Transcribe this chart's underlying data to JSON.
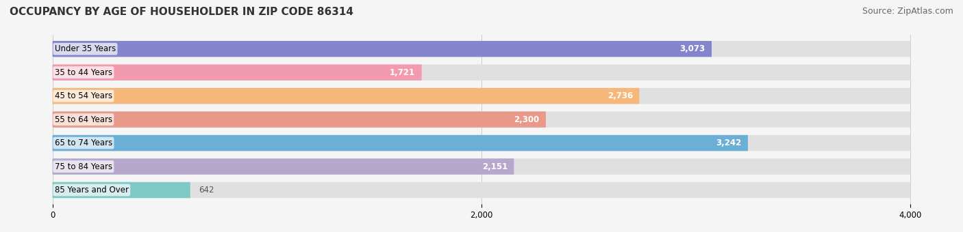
{
  "title": "OCCUPANCY BY AGE OF HOUSEHOLDER IN ZIP CODE 86314",
  "source": "Source: ZipAtlas.com",
  "categories": [
    "Under 35 Years",
    "35 to 44 Years",
    "45 to 54 Years",
    "55 to 64 Years",
    "65 to 74 Years",
    "75 to 84 Years",
    "85 Years and Over"
  ],
  "values": [
    3073,
    1721,
    2736,
    2300,
    3242,
    2151,
    642
  ],
  "bar_colors": [
    "#8585cc",
    "#f29ab0",
    "#f5b87a",
    "#e8998a",
    "#6baed6",
    "#b5a8cc",
    "#7ec8c8"
  ],
  "xlim": [
    -200,
    4200
  ],
  "xticks": [
    0,
    2000,
    4000
  ],
  "title_fontsize": 11,
  "source_fontsize": 9,
  "label_fontsize": 8.5,
  "value_color_inside": "#ffffff",
  "value_color_outside": "#555555",
  "background_color": "#f5f5f5",
  "bar_background": "#e8e8e8"
}
